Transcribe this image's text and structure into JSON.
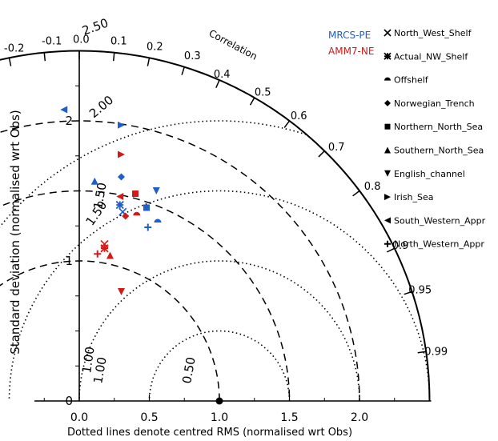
{
  "chart_data": {
    "type": "scatter",
    "subtype": "taylor-diagram",
    "title": "",
    "xlabel": "Dotted lines denote centred RMS (normalised wrt Obs)",
    "ylabel": "Standard deviation (normalised wrt Obs)",
    "correlation_label": "Correlation",
    "xlim": [
      -0.4,
      2.5
    ],
    "ylim": [
      0,
      2.5
    ],
    "x_ticks": [
      "0.0",
      "0.5",
      "1.0",
      "1.5",
      "2.0"
    ],
    "y_ticks": [
      "0",
      "1",
      "2"
    ],
    "std_arc_labels": [
      "1.00",
      "1.50",
      "2.00",
      "2.50"
    ],
    "rms_arc_labels": [
      "0.50",
      "1.00",
      "1.50"
    ],
    "correlation_ticks": [
      {
        "label": "-0.2",
        "value": -0.2
      },
      {
        "label": "-0.1",
        "value": -0.1
      },
      {
        "label": "0.0",
        "value": 0.0
      },
      {
        "label": "0.1",
        "value": 0.1
      },
      {
        "label": "0.2",
        "value": 0.2
      },
      {
        "label": "0.3",
        "value": 0.3
      },
      {
        "label": "0.4",
        "value": 0.4
      },
      {
        "label": "0.5",
        "value": 0.5
      },
      {
        "label": "0.6",
        "value": 0.6
      },
      {
        "label": "0.7",
        "value": 0.7
      },
      {
        "label": "0.8",
        "value": 0.8
      },
      {
        "label": "0.9",
        "value": 0.9
      },
      {
        "label": "0.95",
        "value": 0.95
      },
      {
        "label": "0.99",
        "value": 0.99
      }
    ],
    "reference_point": {
      "x": 1.0,
      "y": 0.0
    },
    "models": [
      {
        "name": "MRCS-PE",
        "color": "#1f5fc7"
      },
      {
        "name": "AMM7-NE",
        "color": "#d11a1a"
      }
    ],
    "regions": [
      {
        "name": "North_West_Shelf",
        "symbol": "×"
      },
      {
        "name": "Actual_NW_Shelf",
        "symbol": "✱"
      },
      {
        "name": "Offshelf",
        "symbol": "◓"
      },
      {
        "name": "Norwegian_Trench",
        "symbol": "◆"
      },
      {
        "name": "Northern_North_Sea",
        "symbol": "■"
      },
      {
        "name": "Southern_North_Sea",
        "symbol": "▲"
      },
      {
        "name": "English_channel",
        "symbol": "▼"
      },
      {
        "name": "Irish_Sea",
        "symbol": "▶"
      },
      {
        "name": "South_Western_Appr",
        "symbol": "◀"
      },
      {
        "name": "North_Western_Appr",
        "symbol": "✚"
      }
    ],
    "points": [
      {
        "model": "MRCS-PE",
        "region": "North_West_Shelf",
        "x": 0.31,
        "y": 1.35
      },
      {
        "model": "MRCS-PE",
        "region": "Actual_NW_Shelf",
        "x": 0.29,
        "y": 1.4
      },
      {
        "model": "MRCS-PE",
        "region": "Offshelf",
        "x": 0.56,
        "y": 1.28
      },
      {
        "model": "MRCS-PE",
        "region": "Norwegian_Trench",
        "x": 0.3,
        "y": 1.6
      },
      {
        "model": "MRCS-PE",
        "region": "Northern_North_Sea",
        "x": 0.48,
        "y": 1.38
      },
      {
        "model": "MRCS-PE",
        "region": "Southern_North_Sea",
        "x": 0.11,
        "y": 1.57
      },
      {
        "model": "MRCS-PE",
        "region": "English_channel",
        "x": 0.55,
        "y": 1.5
      },
      {
        "model": "MRCS-PE",
        "region": "Irish_Sea",
        "x": 0.3,
        "y": 1.97
      },
      {
        "model": "MRCS-PE",
        "region": "South_Western_Appr",
        "x": -0.11,
        "y": 2.08
      },
      {
        "model": "MRCS-PE",
        "region": "North_Western_Appr",
        "x": 0.49,
        "y": 1.24
      },
      {
        "model": "AMM7-NE",
        "region": "North_West_Shelf",
        "x": 0.18,
        "y": 1.12
      },
      {
        "model": "AMM7-NE",
        "region": "Actual_NW_Shelf",
        "x": 0.18,
        "y": 1.09
      },
      {
        "model": "AMM7-NE",
        "region": "Offshelf",
        "x": 0.41,
        "y": 1.33
      },
      {
        "model": "AMM7-NE",
        "region": "Norwegian_Trench",
        "x": 0.33,
        "y": 1.32
      },
      {
        "model": "AMM7-NE",
        "region": "Northern_North_Sea",
        "x": 0.4,
        "y": 1.48
      },
      {
        "model": "AMM7-NE",
        "region": "Southern_North_Sea",
        "x": 0.22,
        "y": 1.04
      },
      {
        "model": "AMM7-NE",
        "region": "English_channel",
        "x": 0.3,
        "y": 0.78
      },
      {
        "model": "AMM7-NE",
        "region": "Irish_Sea",
        "x": 0.3,
        "y": 1.76
      },
      {
        "model": "AMM7-NE",
        "region": "South_Western_Appr",
        "x": 0.29,
        "y": 1.46
      },
      {
        "model": "AMM7-NE",
        "region": "North_Western_Appr",
        "x": 0.13,
        "y": 1.05
      }
    ]
  }
}
